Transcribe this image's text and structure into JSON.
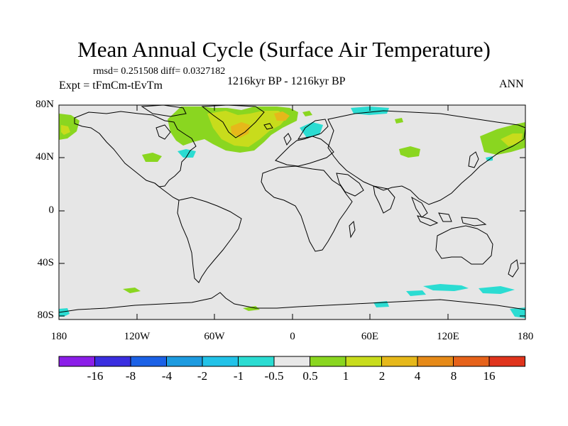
{
  "title": "Mean Annual Cycle (Surface Air Temperature)",
  "stats": "rmsd= 0.251508  diff= 0.0327182",
  "expt": "Expt = tFmCm-tEvTm",
  "period": "1216kyr BP - 1216kyr BP",
  "season": "ANN",
  "lat_labels": [
    "80N",
    "40N",
    "0",
    "40S",
    "80S"
  ],
  "lon_labels": [
    "180",
    "120W",
    "60W",
    "0",
    "60E",
    "120E",
    "180"
  ],
  "colorbar": {
    "labels": [
      "-16",
      "-8",
      "-4",
      "-2",
      "-1",
      "-0.5",
      "0.5",
      "1",
      "2",
      "4",
      "8",
      "16"
    ],
    "colors": [
      "#8b1ee8",
      "#3a2ee0",
      "#1b61e6",
      "#1d9be0",
      "#22c2e8",
      "#2bdcd2",
      "#e8e8e8",
      "#8ad620",
      "#c8dc1c",
      "#e6b81a",
      "#e68a18",
      "#e6621a",
      "#e0341c"
    ]
  },
  "colors": {
    "ocean": "#e6e6e6",
    "coast": "#000000",
    "green": "#8ad620",
    "yellow": "#c8dc1c",
    "orange": "#e6b81a",
    "cyan": "#2bdcd2"
  }
}
